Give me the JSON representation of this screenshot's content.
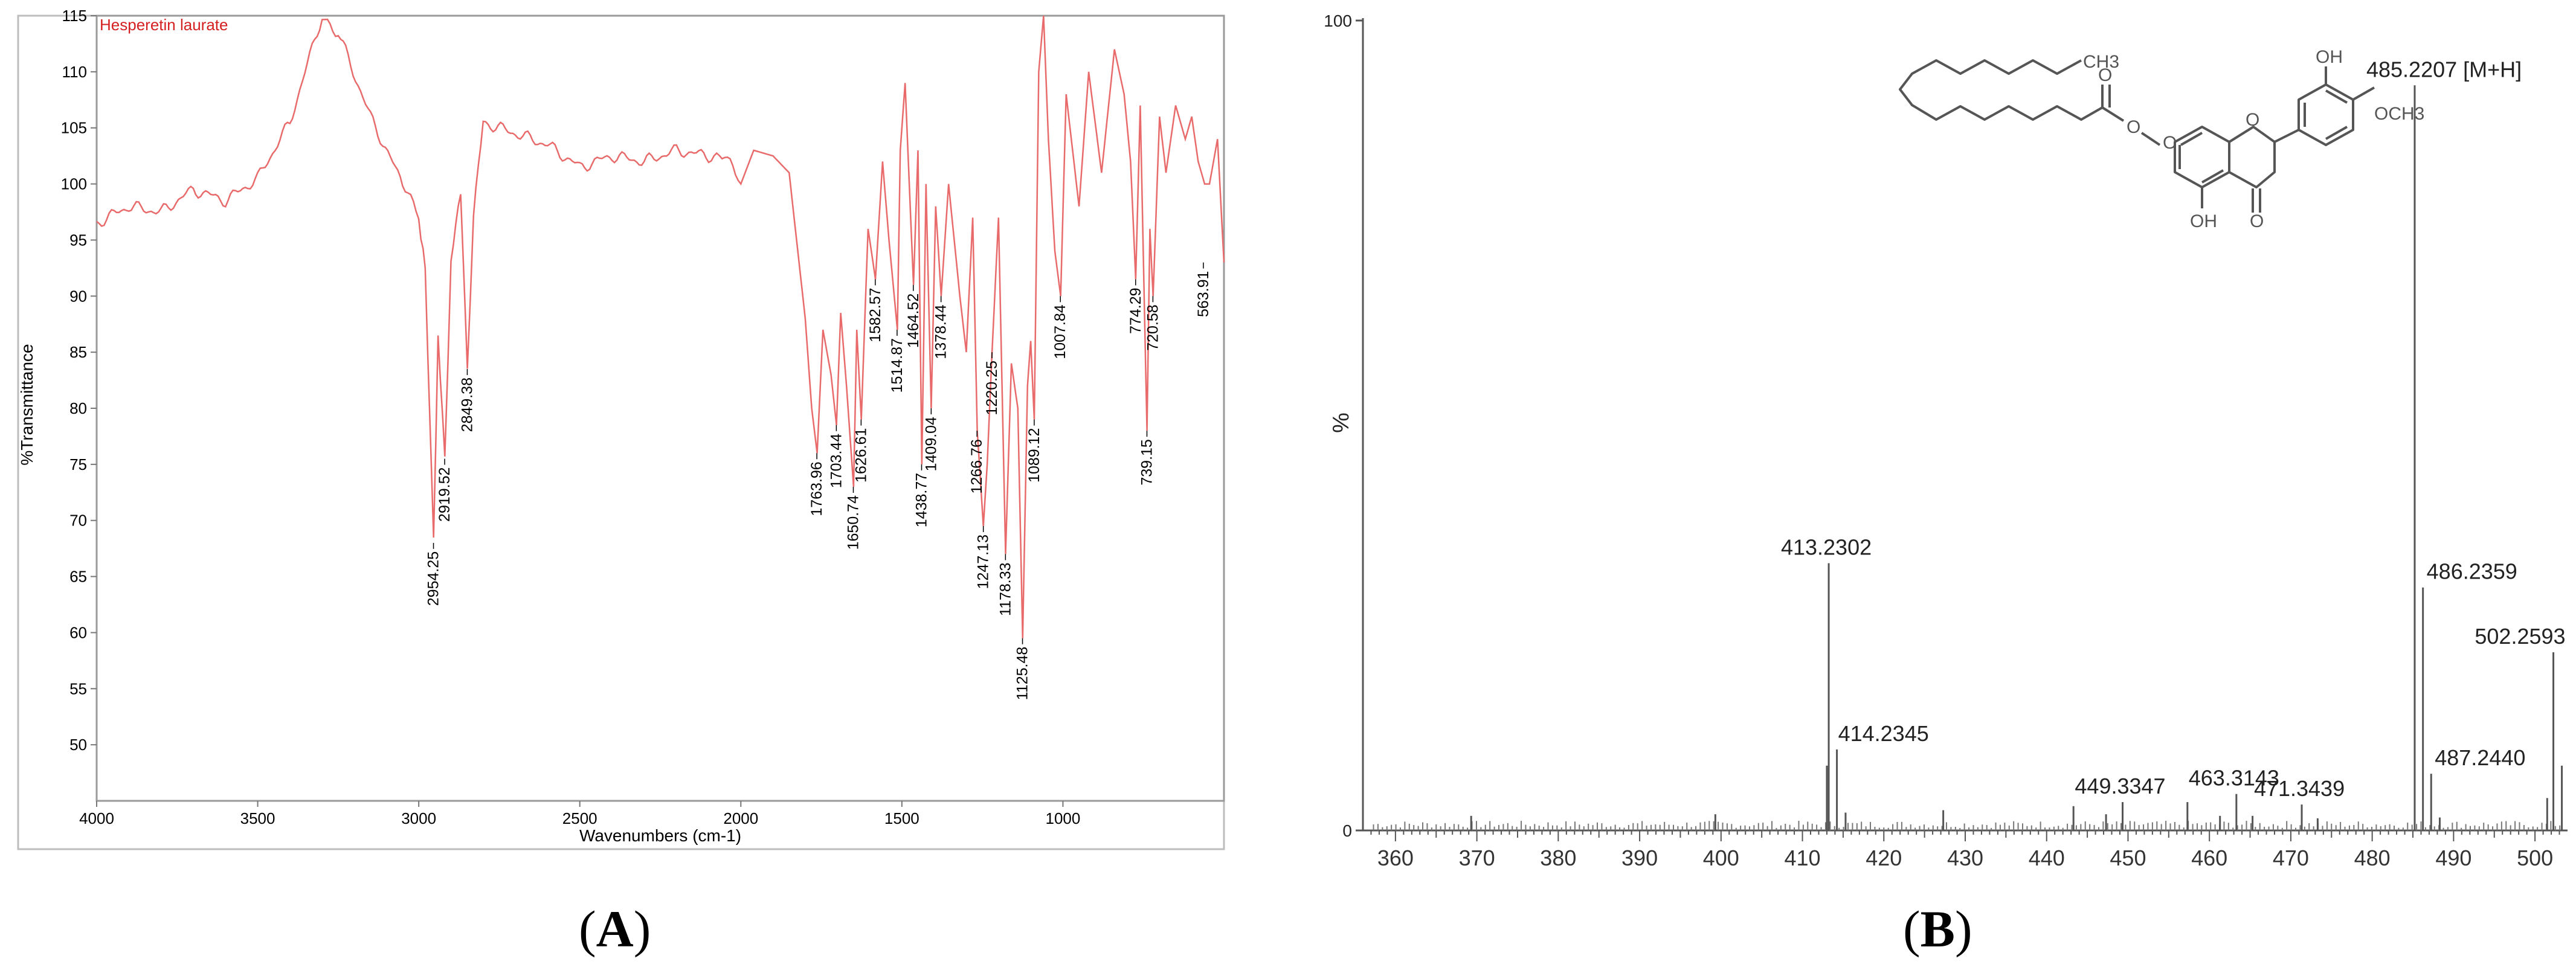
{
  "figure": {
    "panels": [
      {
        "prefix": "(",
        "letter": "A",
        "suffix": ")"
      },
      {
        "prefix": "(",
        "letter": "B",
        "suffix": ")"
      }
    ]
  },
  "chart_data": [
    {
      "type": "line",
      "title": "Hesperetin laurate",
      "xlabel": "Wavenumbers (cm-1)",
      "ylabel": "%Transmittance",
      "xlim": [
        4000,
        500
      ],
      "ylim": [
        45,
        115
      ],
      "x_ticks": [
        "4000",
        "3500",
        "3000",
        "2500",
        "2000",
        "1500",
        "1000"
      ],
      "y_ticks": [
        "50",
        "55",
        "60",
        "65",
        "70",
        "75",
        "80",
        "85",
        "90",
        "95",
        "100",
        "105",
        "110",
        "115"
      ],
      "line_color": "#e86a6a",
      "label_color": "#d42020",
      "x": [
        4000,
        3900,
        3800,
        3700,
        3600,
        3500,
        3400,
        3300,
        3250,
        3150,
        3050,
        3000,
        2980,
        2954,
        2940,
        2919,
        2900,
        2870,
        2849,
        2830,
        2800,
        2700,
        2600,
        2500,
        2400,
        2300,
        2200,
        2100,
        2050,
        2000,
        1960,
        1900,
        1850,
        1800,
        1780,
        1763,
        1745,
        1720,
        1703,
        1690,
        1672,
        1650,
        1640,
        1626,
        1605,
        1582,
        1560,
        1540,
        1514,
        1505,
        1490,
        1464,
        1450,
        1438,
        1425,
        1409,
        1395,
        1378,
        1355,
        1320,
        1300,
        1280,
        1266,
        1247,
        1235,
        1220,
        1200,
        1178,
        1160,
        1140,
        1125,
        1110,
        1100,
        1089,
        1075,
        1060,
        1045,
        1025,
        1007,
        990,
        950,
        920,
        880,
        840,
        810,
        790,
        774,
        760,
        739,
        730,
        720,
        700,
        680,
        650,
        620,
        600,
        580,
        560,
        545,
        520,
        500
      ],
      "y": [
        96.5,
        98,
        97.5,
        99.5,
        98.5,
        100.5,
        105.5,
        115,
        113.5,
        106,
        100,
        97,
        93,
        68,
        86,
        75.5,
        93,
        99,
        83.5,
        97,
        105.5,
        104.5,
        103.5,
        101.5,
        102.5,
        102,
        103,
        102.5,
        102.5,
        100,
        103,
        102.5,
        101,
        88,
        80,
        76,
        87,
        83,
        78.5,
        88.5,
        82,
        73,
        87,
        79,
        96,
        91.5,
        102,
        95,
        87,
        103,
        109,
        91,
        103,
        75,
        100,
        80,
        98,
        90,
        100,
        90,
        85,
        97,
        78,
        69.5,
        75,
        85,
        97,
        67,
        84,
        80,
        59.5,
        82,
        86,
        79,
        110,
        115,
        104,
        94,
        90,
        108,
        98,
        110,
        101,
        112,
        108,
        102,
        91.5,
        107,
        78,
        96,
        90,
        106,
        101,
        107,
        104,
        106,
        102,
        100,
        100,
        104,
        93
      ],
      "peak_labels": [
        {
          "text": "2954.25",
          "x": 2954.25,
          "y": 68
        },
        {
          "text": "2919.52",
          "x": 2919.52,
          "y": 75.5
        },
        {
          "text": "2849.38",
          "x": 2849.38,
          "y": 83.5
        },
        {
          "text": "1763.96",
          "x": 1763.96,
          "y": 76
        },
        {
          "text": "1703.44",
          "x": 1703.44,
          "y": 78.5
        },
        {
          "text": "1650.74",
          "x": 1650.74,
          "y": 73
        },
        {
          "text": "1626.61",
          "x": 1626.61,
          "y": 79
        },
        {
          "text": "1582.57",
          "x": 1582.57,
          "y": 91.5
        },
        {
          "text": "1514.87",
          "x": 1514.87,
          "y": 87
        },
        {
          "text": "1464.52",
          "x": 1464.52,
          "y": 91
        },
        {
          "text": "1438.77",
          "x": 1438.77,
          "y": 75
        },
        {
          "text": "1409.04",
          "x": 1409.04,
          "y": 80
        },
        {
          "text": "1378.44",
          "x": 1378.44,
          "y": 90
        },
        {
          "text": "1266.76",
          "x": 1266.76,
          "y": 78
        },
        {
          "text": "1247.13",
          "x": 1247.13,
          "y": 69.5
        },
        {
          "text": "1220.25",
          "x": 1220.25,
          "y": 85
        },
        {
          "text": "1178.33",
          "x": 1178.33,
          "y": 67
        },
        {
          "text": "1125.48",
          "x": 1125.48,
          "y": 59.5
        },
        {
          "text": "1089.12",
          "x": 1089.12,
          "y": 79
        },
        {
          "text": "1007.84",
          "x": 1007.84,
          "y": 90
        },
        {
          "text": "774.29",
          "x": 774.29,
          "y": 91.5
        },
        {
          "text": "739.15",
          "x": 739.15,
          "y": 78
        },
        {
          "text": "720.58",
          "x": 720.58,
          "y": 90
        },
        {
          "text": "563.91",
          "x": 563.91,
          "y": 93
        }
      ]
    },
    {
      "type": "bar",
      "xlabel": "",
      "ylabel": "%",
      "xlim": [
        356,
        504
      ],
      "ylim": [
        0,
        100
      ],
      "x_ticks": [
        "360",
        "370",
        "380",
        "390",
        "400",
        "410",
        "420",
        "430",
        "440",
        "450",
        "460",
        "470",
        "480",
        "490",
        "500"
      ],
      "y_ticks": [
        "0",
        "100"
      ],
      "peaks": [
        {
          "mz": 485.2207,
          "intensity": 92,
          "label": "485.2207 [M+H]"
        },
        {
          "mz": 413.2302,
          "intensity": 33,
          "label": "413.2302"
        },
        {
          "mz": 486.2359,
          "intensity": 30,
          "label": "486.2359"
        },
        {
          "mz": 502.2593,
          "intensity": 22,
          "label": "502.2593"
        },
        {
          "mz": 414.2345,
          "intensity": 10,
          "label": "414.2345"
        },
        {
          "mz": 487.244,
          "intensity": 7,
          "label": "487.2440"
        },
        {
          "mz": 463.3143,
          "intensity": 4.5,
          "label": "463.3143"
        },
        {
          "mz": 449.3347,
          "intensity": 3.5,
          "label": "449.3347"
        },
        {
          "mz": 471.3439,
          "intensity": 3.2,
          "label": "471.3439"
        },
        {
          "mz": 413.0,
          "intensity": 8,
          "label": ""
        },
        {
          "mz": 503.3,
          "intensity": 8,
          "label": ""
        },
        {
          "mz": 501.5,
          "intensity": 4,
          "label": ""
        },
        {
          "mz": 443.3,
          "intensity": 3,
          "label": ""
        },
        {
          "mz": 457.3,
          "intensity": 3.5,
          "label": ""
        },
        {
          "mz": 427.3,
          "intensity": 2.5,
          "label": ""
        },
        {
          "mz": 399.3,
          "intensity": 2,
          "label": ""
        },
        {
          "mz": 369.3,
          "intensity": 1.8,
          "label": ""
        },
        {
          "mz": 415.3,
          "intensity": 2.2,
          "label": ""
        },
        {
          "mz": 447.3,
          "intensity": 2,
          "label": ""
        },
        {
          "mz": 461.3,
          "intensity": 1.8,
          "label": ""
        },
        {
          "mz": 465.3,
          "intensity": 1.8,
          "label": ""
        },
        {
          "mz": 473.3,
          "intensity": 1.5,
          "label": ""
        },
        {
          "mz": 488.3,
          "intensity": 1.6,
          "label": ""
        }
      ],
      "molecule": {
        "labels": [
          {
            "text": "CH3"
          },
          {
            "text": "OH"
          },
          {
            "text": "OCH3"
          },
          {
            "text": "O"
          },
          {
            "text": "O"
          },
          {
            "text": "O"
          },
          {
            "text": "O"
          },
          {
            "text": "OH"
          },
          {
            "text": "O"
          }
        ]
      }
    }
  ]
}
